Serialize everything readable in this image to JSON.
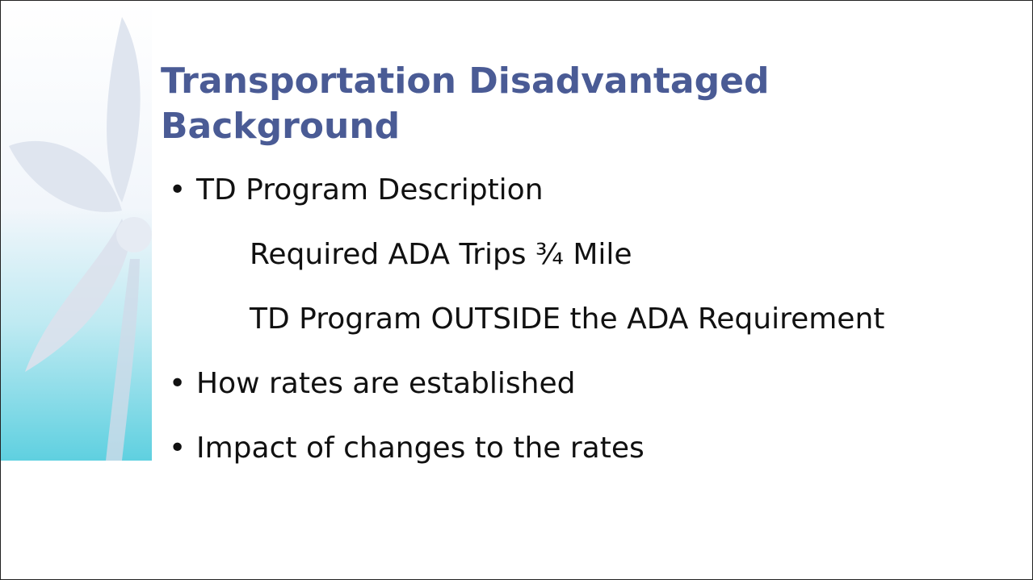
{
  "title": "Transportation Disadvantaged Background",
  "bullets": [
    {
      "text": "TD Program Description",
      "subitems": [
        "Required ADA Trips ¾ Mile",
        "TD Program OUTSIDE the ADA Requirement"
      ]
    },
    {
      "text": "How rates are established",
      "subitems": []
    },
    {
      "text": "Impact of changes to the rates",
      "subitems": []
    }
  ]
}
